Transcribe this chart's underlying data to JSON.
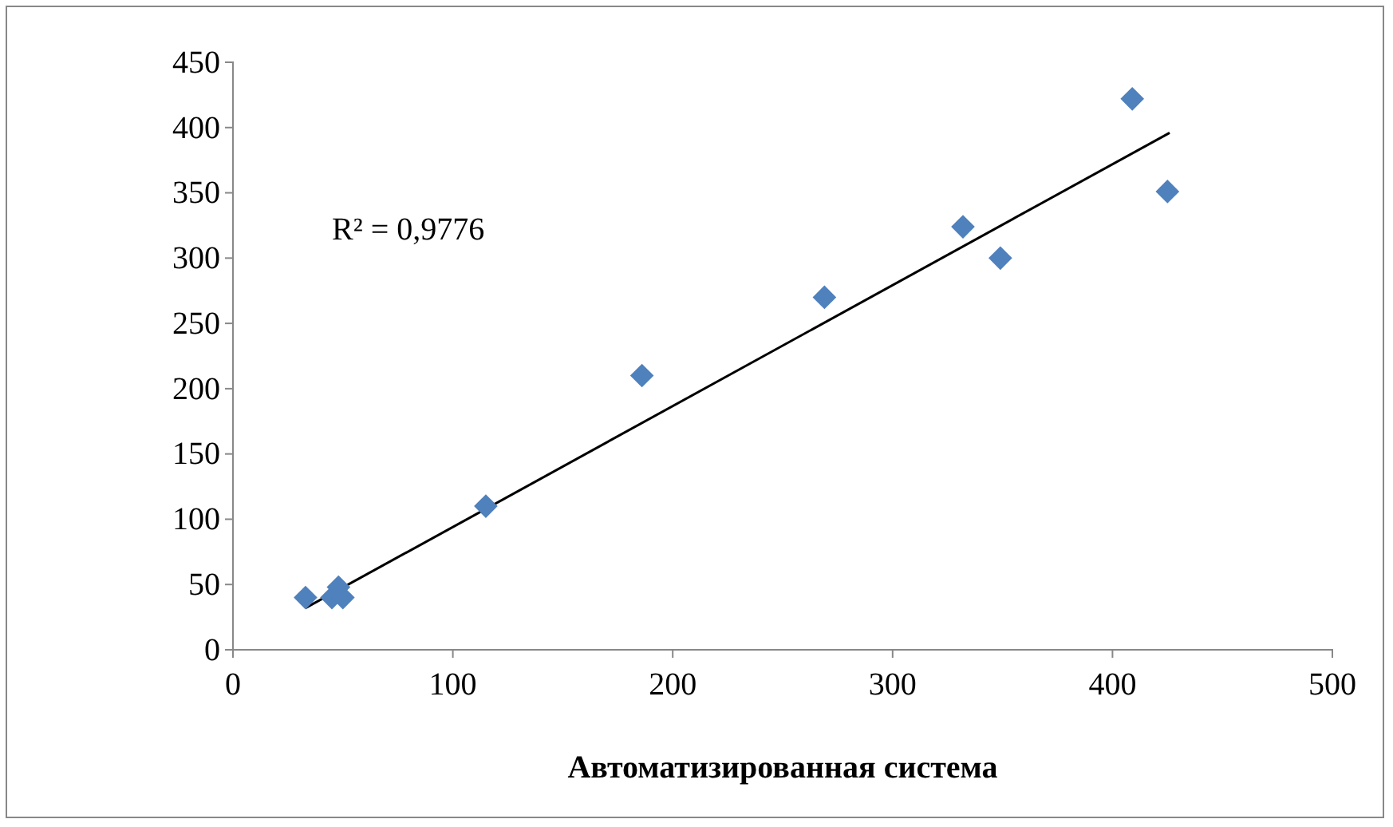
{
  "chart_data": {
    "type": "scatter",
    "xlabel": "Автоматизированная система",
    "xlim": [
      0,
      500
    ],
    "xticks": [
      0,
      100,
      200,
      300,
      400,
      500
    ],
    "ylim": [
      0,
      450
    ],
    "yticks": [
      0,
      50,
      100,
      150,
      200,
      250,
      300,
      350,
      400,
      450
    ],
    "grid": false,
    "marker": "diamond",
    "annotations": [
      "R² = 0,9776"
    ],
    "series": [
      {
        "color": "#4f81bd",
        "x": [
          33,
          45,
          48,
          50,
          115,
          186,
          269,
          332,
          349,
          409,
          425
        ],
        "values": [
          40,
          40,
          48,
          40,
          110,
          210,
          270,
          324,
          300,
          422,
          351
        ]
      },
      {
        "type": "line",
        "color": "#000000",
        "x": [
          33,
          426
        ],
        "values": [
          32,
          396
        ],
        "marker": "none"
      }
    ]
  }
}
